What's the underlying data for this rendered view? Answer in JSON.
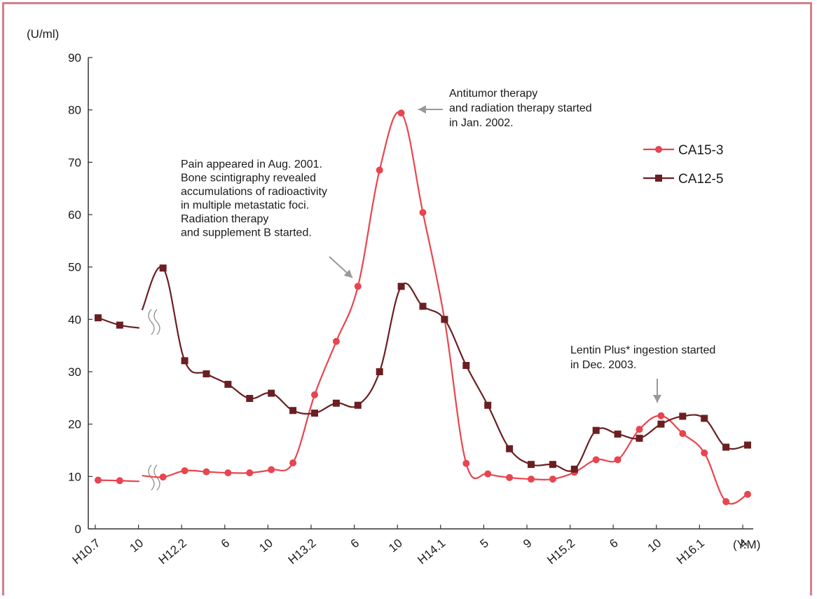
{
  "chart_data": {
    "type": "line",
    "ylabel": "(U/ml)",
    "xlabel": "(Y.M)",
    "ylim": [
      0,
      90
    ],
    "yticks": [
      0,
      10,
      20,
      30,
      40,
      50,
      60,
      70,
      80,
      90
    ],
    "xticks": [
      "H10.7",
      "10",
      "H12.2",
      "6",
      "10",
      "H13.2",
      "6",
      "10",
      "H14.1",
      "5",
      "9",
      "H15.2",
      "6",
      "10",
      "H16.1",
      "4"
    ],
    "axis_break": "between H10 and H12",
    "grid": false,
    "legend_position": "top-right",
    "colors": {
      "CA15-3": "#e8454f",
      "CA12-5": "#6b1f22",
      "axis": "#333333",
      "arrow": "#999999",
      "frame": "#d4808a"
    },
    "series": [
      {
        "name": "CA15-3",
        "marker": "circle",
        "points": [
          [
            "H10.7",
            9.3
          ],
          [
            "H10.9",
            9.2
          ],
          [
            "H12.2",
            9.9
          ],
          [
            "H12.4",
            11.1
          ],
          [
            "H12.6",
            10.9
          ],
          [
            "H12.8",
            10.7
          ],
          [
            "H12.10",
            10.7
          ],
          [
            "H12.12",
            11.3
          ],
          [
            "H13.2",
            12.6
          ],
          [
            "H13.4",
            25.6
          ],
          [
            "H13.6",
            35.8
          ],
          [
            "H13.8",
            46.3
          ],
          [
            "H13.10",
            68.5
          ],
          [
            "H13.12",
            79.4
          ],
          [
            "H14.2",
            60.4
          ],
          [
            "H14.4",
            40.0
          ],
          [
            "H14.6",
            12.5
          ],
          [
            "H14.8",
            10.5
          ],
          [
            "H14.10",
            9.8
          ],
          [
            "H14.12",
            9.5
          ],
          [
            "H15.2",
            9.5
          ],
          [
            "H15.4",
            10.8
          ],
          [
            "H15.6",
            13.2
          ],
          [
            "H15.8",
            13.2
          ],
          [
            "H15.10",
            19.0
          ],
          [
            "H15.12",
            21.6
          ],
          [
            "H16.2",
            18.2
          ],
          [
            "H16.4",
            14.5
          ],
          [
            "H16.6",
            5.2
          ],
          [
            "H16.8",
            6.6
          ]
        ]
      },
      {
        "name": "CA12-5",
        "marker": "square",
        "points": [
          [
            "H10.7",
            40.3
          ],
          [
            "H10.9",
            38.9
          ],
          [
            "H12.2",
            49.8
          ],
          [
            "H12.4",
            32.1
          ],
          [
            "H12.6",
            29.6
          ],
          [
            "H12.8",
            27.6
          ],
          [
            "H12.10",
            24.9
          ],
          [
            "H12.12",
            25.9
          ],
          [
            "H13.2",
            22.6
          ],
          [
            "H13.4",
            22.1
          ],
          [
            "H13.6",
            24.0
          ],
          [
            "H13.8",
            23.6
          ],
          [
            "H13.10",
            30.0
          ],
          [
            "H13.12",
            46.3
          ],
          [
            "H14.2",
            42.5
          ],
          [
            "H14.4",
            40.0
          ],
          [
            "H14.6",
            31.2
          ],
          [
            "H14.8",
            23.6
          ],
          [
            "H14.10",
            15.3
          ],
          [
            "H14.12",
            12.3
          ],
          [
            "H15.2",
            12.3
          ],
          [
            "H15.4",
            11.4
          ],
          [
            "H15.6",
            18.8
          ],
          [
            "H15.8",
            18.1
          ],
          [
            "H15.10",
            17.3
          ],
          [
            "H15.12",
            20.0
          ],
          [
            "H16.2",
            21.5
          ],
          [
            "H16.4",
            21.1
          ],
          [
            "H16.6",
            15.6
          ],
          [
            "H16.8",
            16.0
          ]
        ]
      }
    ],
    "annotations": [
      {
        "lines": [
          "Antitumor therapy",
          "and radiation therapy started",
          "in Jan. 2002."
        ]
      },
      {
        "lines": [
          "Pain appeared in Aug. 2001.",
          "Bone scintigraphy revealed",
          "accumulations of radioactivity",
          "in multiple metastatic foci.",
          "Radiation therapy",
          "and supplement B started."
        ]
      },
      {
        "lines": [
          "Lentin Plus* ingestion started",
          "in Dec. 2003."
        ]
      }
    ]
  }
}
